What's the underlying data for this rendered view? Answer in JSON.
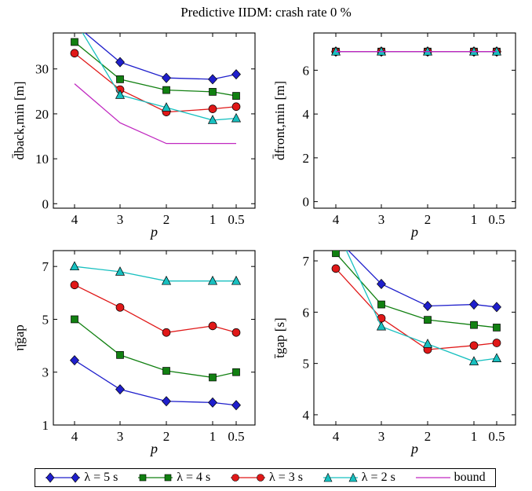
{
  "title": "Predictive IIDM: crash rate 0 %",
  "colors": {
    "lambda5": "#1f1fcc",
    "lambda4": "#118011",
    "lambda3": "#e01818",
    "lambda2": "#18c0c0",
    "bound": "#c028c0"
  },
  "legend": [
    {
      "label": "λ = 5 s",
      "color": "#1f1fcc",
      "marker": "diamond"
    },
    {
      "label": "λ = 4 s",
      "color": "#118011",
      "marker": "square"
    },
    {
      "label": "λ = 3 s",
      "color": "#e01818",
      "marker": "circle"
    },
    {
      "label": "λ = 2 s",
      "color": "#18c0c0",
      "marker": "triangle"
    },
    {
      "label": "bound",
      "color": "#c028c0",
      "marker": "none"
    }
  ],
  "chart_data": [
    {
      "type": "line",
      "ylabel": "d̄back,min [m]",
      "xlabel": "p",
      "x_ticks": [
        "4",
        "3",
        "2",
        "1",
        "0.5"
      ],
      "ylim": [
        -1,
        38
      ],
      "y_ticks": [
        0,
        10,
        20,
        30
      ],
      "series": [
        {
          "name": "λ = 5 s",
          "values": [
            40,
            31.5,
            28.0,
            27.7,
            28.8
          ]
        },
        {
          "name": "λ = 4 s",
          "values": [
            36,
            27.7,
            25.3,
            24.9,
            24.0
          ]
        },
        {
          "name": "λ = 3 s",
          "values": [
            33.5,
            25.4,
            20.4,
            21.1,
            21.6
          ]
        },
        {
          "name": "λ = 2 s",
          "values": [
            41,
            24.2,
            21.4,
            18.6,
            19.0
          ]
        },
        {
          "name": "bound",
          "values": [
            26.7,
            18.0,
            13.4,
            13.4,
            13.4
          ]
        }
      ]
    },
    {
      "type": "line",
      "ylabel": "d̄front,min [m]",
      "xlabel": "p",
      "x_ticks": [
        "4",
        "3",
        "2",
        "1",
        "0.5"
      ],
      "ylim": [
        -0.3,
        7.7
      ],
      "y_ticks": [
        0,
        2,
        4,
        6
      ],
      "series": [
        {
          "name": "λ = 5 s",
          "values": [
            6.85,
            6.85,
            6.85,
            6.85,
            6.85
          ]
        },
        {
          "name": "λ = 4 s",
          "values": [
            6.85,
            6.85,
            6.85,
            6.85,
            6.85
          ]
        },
        {
          "name": "λ = 3 s",
          "values": [
            6.85,
            6.85,
            6.85,
            6.85,
            6.85
          ]
        },
        {
          "name": "λ = 2 s",
          "values": [
            6.85,
            6.85,
            6.85,
            6.85,
            6.85
          ]
        },
        {
          "name": "bound",
          "values": [
            6.85,
            6.85,
            6.85,
            6.85,
            6.85
          ]
        }
      ]
    },
    {
      "type": "line",
      "ylabel": "η̄gap",
      "xlabel": "p",
      "x_ticks": [
        "4",
        "3",
        "2",
        "1",
        "0.5"
      ],
      "ylim": [
        1,
        7.6
      ],
      "y_ticks": [
        1,
        3,
        5,
        7
      ],
      "series": [
        {
          "name": "λ = 5 s",
          "values": [
            3.45,
            2.35,
            1.9,
            1.85,
            1.75
          ]
        },
        {
          "name": "λ = 4 s",
          "values": [
            5.0,
            3.65,
            3.05,
            2.8,
            3.0
          ]
        },
        {
          "name": "λ = 3 s",
          "values": [
            6.3,
            5.45,
            4.5,
            4.75,
            4.5
          ]
        },
        {
          "name": "λ = 2 s",
          "values": [
            7.0,
            6.8,
            6.45,
            6.45,
            6.45
          ]
        }
      ]
    },
    {
      "type": "line",
      "ylabel": "t̄gap [s]",
      "xlabel": "p",
      "x_ticks": [
        "4",
        "3",
        "2",
        "1",
        "0.5"
      ],
      "ylim": [
        3.8,
        7.2
      ],
      "y_ticks": [
        4,
        5,
        6,
        7
      ],
      "series": [
        {
          "name": "λ = 5 s",
          "values": [
            7.45,
            6.55,
            6.12,
            6.15,
            6.1
          ]
        },
        {
          "name": "λ = 4 s",
          "values": [
            7.15,
            6.15,
            5.85,
            5.75,
            5.7
          ]
        },
        {
          "name": "λ = 3 s",
          "values": [
            6.85,
            5.88,
            5.27,
            5.35,
            5.4
          ]
        },
        {
          "name": "λ = 2 s",
          "values": [
            7.65,
            5.72,
            5.38,
            5.04,
            5.1
          ]
        }
      ]
    }
  ]
}
